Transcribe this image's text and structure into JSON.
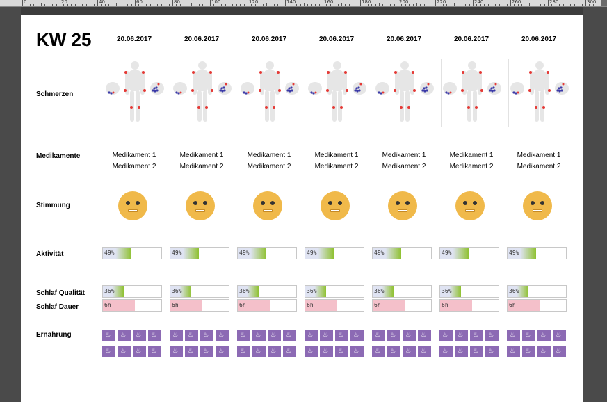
{
  "ruler": {
    "labels": [
      "0",
      "20",
      "40",
      "60",
      "80",
      "100",
      "120",
      "140",
      "160",
      "180",
      "200",
      "220",
      "240",
      "260",
      "280",
      "300"
    ]
  },
  "sheet": {
    "title": "KW 25",
    "labels": {
      "pain": "Schmerzen",
      "meds": "Medikamente",
      "mood": "Stimmung",
      "activity": "Aktivität",
      "sleep_quality": "Schlaf Qualität",
      "sleep_duration": "Schlaf Dauer",
      "nutrition": "Ernährung"
    }
  },
  "days": [
    {
      "date": "20.06.2017",
      "med1": "Medikament 1",
      "med2": "Medikament 2",
      "activity": "49%",
      "activity_value": 0.49,
      "sleep_quality": "36%",
      "sleep_quality_value": 0.36,
      "sleep_duration": "6h",
      "sleep_duration_value": 0.55
    },
    {
      "date": "20.06.2017",
      "med1": "Medikament 1",
      "med2": "Medikament 2",
      "activity": "49%",
      "activity_value": 0.49,
      "sleep_quality": "36%",
      "sleep_quality_value": 0.36,
      "sleep_duration": "6h",
      "sleep_duration_value": 0.55
    },
    {
      "date": "20.06.2017",
      "med1": "Medikament 1",
      "med2": "Medikament 2",
      "activity": "49%",
      "activity_value": 0.49,
      "sleep_quality": "36%",
      "sleep_quality_value": 0.36,
      "sleep_duration": "6h",
      "sleep_duration_value": 0.55
    },
    {
      "date": "20.06.2017",
      "med1": "Medikament 1",
      "med2": "Medikament 2",
      "activity": "49%",
      "activity_value": 0.49,
      "sleep_quality": "36%",
      "sleep_quality_value": 0.36,
      "sleep_duration": "6h",
      "sleep_duration_value": 0.55
    },
    {
      "date": "20.06.2017",
      "med1": "Medikament 1",
      "med2": "Medikament 2",
      "activity": "49%",
      "activity_value": 0.49,
      "sleep_quality": "36%",
      "sleep_quality_value": 0.36,
      "sleep_duration": "6h",
      "sleep_duration_value": 0.55
    },
    {
      "date": "20.06.2017",
      "med1": "Medikament 1",
      "med2": "Medikament 2",
      "activity": "49%",
      "activity_value": 0.49,
      "sleep_quality": "36%",
      "sleep_quality_value": 0.36,
      "sleep_duration": "6h",
      "sleep_duration_value": 0.55
    },
    {
      "date": "20.06.2017",
      "med1": "Medikament 1",
      "med2": "Medikament 2",
      "activity": "49%",
      "activity_value": 0.49,
      "sleep_quality": "36%",
      "sleep_quality_value": 0.36,
      "sleep_duration": "6h",
      "sleep_duration_value": 0.55
    }
  ],
  "colors": {
    "activity_fill": "#8fc131",
    "sleep_quality_fill": "#8fc131",
    "sleep_duration_fill": "#f4c0ca",
    "face": "#f0b94a",
    "food_tile": "#8c6ab4",
    "pain_dot": "#e53935",
    "body": "#e6e6e6"
  },
  "icons": {
    "food": "food-icon",
    "mood": "neutral-face-icon",
    "pain": "body-pain-map-icon"
  }
}
